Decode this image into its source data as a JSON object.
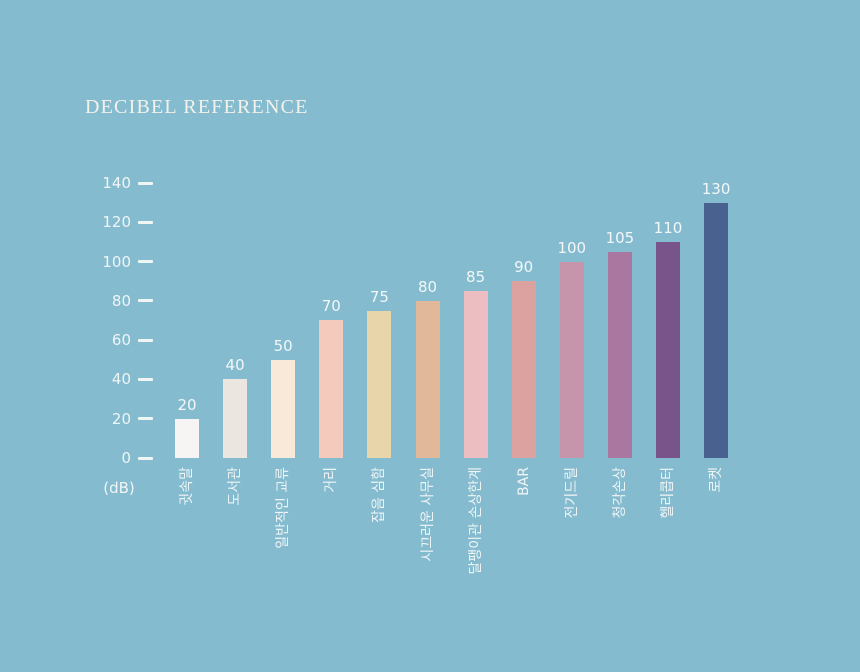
{
  "colors": {
    "background": "#84bbcf",
    "axis_text": "#f0f5f6",
    "title_text": "#f4f1ea",
    "value_text": "#f3f7f8",
    "tick_dash": "#f0f5f6"
  },
  "chart_data": {
    "type": "bar",
    "title": "DECIBEL REFERENCE",
    "xlabel": "",
    "ylabel": "(dB)",
    "ylim": [
      0,
      140
    ],
    "yticks": [
      0,
      20,
      40,
      60,
      80,
      100,
      120,
      140
    ],
    "grid": false,
    "legend": false,
    "value_labels": true,
    "categories": [
      "귓속말",
      "도서관",
      "일반적인 교류",
      "거리",
      "잡음 심함",
      "시끄러운 사무실",
      "달팽이관 손상한계",
      "BAR",
      "전기드릴",
      "청각손상",
      "헬리콥터",
      "로켓"
    ],
    "values": [
      20,
      40,
      50,
      70,
      75,
      80,
      85,
      90,
      100,
      105,
      110,
      130
    ],
    "bar_colors": [
      "#f6f5f4",
      "#ebe6df",
      "#f9e9d8",
      "#f3cabc",
      "#e9d5aa",
      "#e2b89b",
      "#edbec1",
      "#dba2a0",
      "#c695ab",
      "#a9779f",
      "#78548a",
      "#49618f"
    ]
  }
}
